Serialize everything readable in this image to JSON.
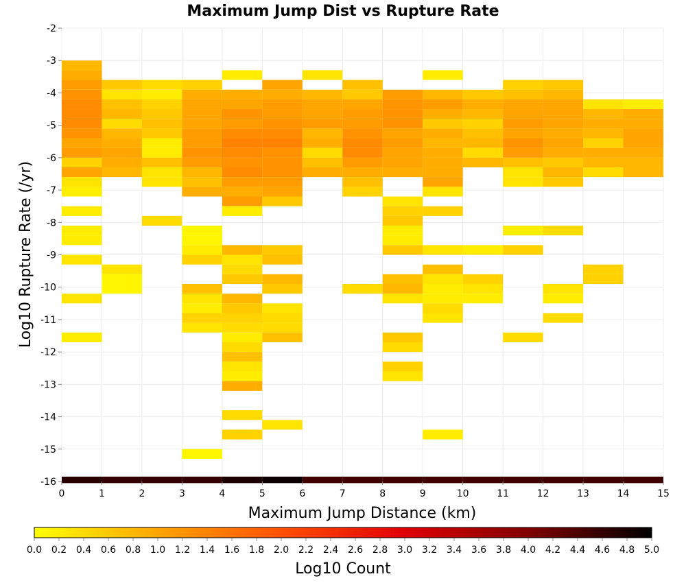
{
  "chart_data": {
    "type": "heatmap",
    "title": "Maximum Jump Dist vs Rupture Rate",
    "xlabel": "Maximum Jump Distance (km)",
    "ylabel": "Log10 Rupture Rate (/yr)",
    "xlim": [
      0,
      15
    ],
    "ylim": [
      -16,
      -2
    ],
    "x_ticks": [
      "0",
      "1",
      "2",
      "3",
      "4",
      "5",
      "6",
      "7",
      "8",
      "9",
      "10",
      "11",
      "12",
      "13",
      "14",
      "15"
    ],
    "y_ticks": [
      "-2",
      "-3",
      "-4",
      "-5",
      "-6",
      "-7",
      "-8",
      "-9",
      "-10",
      "-11",
      "-12",
      "-13",
      "-14",
      "-15",
      "-16"
    ],
    "grid": true,
    "x_bin_width": 1,
    "y_bin_height": 0.3,
    "colorbar": {
      "label": "Log10 Count",
      "min": 0.0,
      "max": 5.0,
      "colors": [
        "#ffff00",
        "#ffa500",
        "#ff5000",
        "#e00000",
        "#800000",
        "#000000"
      ],
      "tick_labels": [
        "0.0",
        "0.2",
        "0.4",
        "0.6",
        "0.8",
        "1.0",
        "1.2",
        "1.4",
        "1.6",
        "1.8",
        "2.0",
        "2.2",
        "2.4",
        "2.6",
        "2.8",
        "3.0",
        "3.2",
        "3.4",
        "3.6",
        "3.8",
        "4.0",
        "4.2",
        "4.4",
        "4.6",
        "4.8",
        "5.0"
      ]
    },
    "total_row": {
      "y": -16,
      "values": [
        4.7,
        4.6,
        4.6,
        4.6,
        4.8,
        4.9,
        4.5,
        4.5,
        4.5,
        4.5,
        4.5,
        4.5,
        4.5,
        4.5,
        4.5
      ]
    },
    "columns": [
      {
        "x": 0,
        "cells": [
          [
            -3.3,
            0.8
          ],
          [
            -3.6,
            0.9
          ],
          [
            -3.9,
            1.1
          ],
          [
            -4.2,
            1.2
          ],
          [
            -4.5,
            1.3
          ],
          [
            -4.8,
            1.3
          ],
          [
            -5.1,
            1.3
          ],
          [
            -5.4,
            1.2
          ],
          [
            -5.7,
            1.0
          ],
          [
            -6.0,
            1.1
          ],
          [
            -6.3,
            0.5
          ],
          [
            -6.6,
            1.0
          ],
          [
            -6.9,
            0.3
          ],
          [
            -7.2,
            0.2
          ],
          [
            -7.8,
            0.2
          ],
          [
            -8.4,
            0.2
          ],
          [
            -8.7,
            0.2
          ],
          [
            -9.3,
            0.3
          ],
          [
            -10.5,
            0.3
          ],
          [
            -11.7,
            0.2
          ]
        ]
      },
      {
        "x": 1,
        "cells": [
          [
            -3.9,
            0.6
          ],
          [
            -4.2,
            0.3
          ],
          [
            -4.5,
            0.7
          ],
          [
            -4.8,
            0.8
          ],
          [
            -5.1,
            0.4
          ],
          [
            -5.4,
            0.8
          ],
          [
            -5.7,
            0.9
          ],
          [
            -6.0,
            1.0
          ],
          [
            -6.3,
            0.9
          ],
          [
            -6.6,
            0.8
          ],
          [
            -9.6,
            0.3
          ],
          [
            -9.9,
            0.1
          ],
          [
            -10.2,
            0.1
          ]
        ]
      },
      {
        "x": 2,
        "cells": [
          [
            -3.9,
            0.4
          ],
          [
            -4.2,
            0.2
          ],
          [
            -4.5,
            0.5
          ],
          [
            -4.8,
            0.6
          ],
          [
            -5.1,
            0.7
          ],
          [
            -5.4,
            0.6
          ],
          [
            -5.7,
            0.2
          ],
          [
            -6.0,
            0.2
          ],
          [
            -6.3,
            0.7
          ],
          [
            -6.6,
            0.3
          ],
          [
            -6.9,
            0.3
          ],
          [
            -8.1,
            0.4
          ]
        ]
      },
      {
        "x": 3,
        "cells": [
          [
            -3.9,
            0.5
          ],
          [
            -4.2,
            0.9
          ],
          [
            -4.5,
            1.0
          ],
          [
            -4.8,
            1.0
          ],
          [
            -5.1,
            1.0
          ],
          [
            -5.4,
            1.1
          ],
          [
            -5.7,
            1.1
          ],
          [
            -6.0,
            1.2
          ],
          [
            -6.3,
            1.1
          ],
          [
            -6.6,
            0.8
          ],
          [
            -6.9,
            0.7
          ],
          [
            -7.2,
            0.9
          ],
          [
            -8.4,
            0.1
          ],
          [
            -8.7,
            0.1
          ],
          [
            -9.0,
            0.2
          ],
          [
            -9.3,
            0.5
          ],
          [
            -10.2,
            0.7
          ],
          [
            -10.5,
            0.3
          ],
          [
            -10.8,
            0.2
          ],
          [
            -11.1,
            0.5
          ],
          [
            -11.4,
            0.3
          ],
          [
            -15.3,
            0.1
          ]
        ]
      },
      {
        "x": 4,
        "cells": [
          [
            -3.6,
            0.2
          ],
          [
            -4.2,
            0.9
          ],
          [
            -4.5,
            1.0
          ],
          [
            -4.8,
            1.2
          ],
          [
            -5.1,
            1.1
          ],
          [
            -5.4,
            1.3
          ],
          [
            -5.7,
            1.4
          ],
          [
            -6.0,
            1.3
          ],
          [
            -6.3,
            1.2
          ],
          [
            -6.6,
            1.3
          ],
          [
            -6.9,
            1.1
          ],
          [
            -7.2,
            0.9
          ],
          [
            -7.5,
            1.1
          ],
          [
            -7.8,
            0.2
          ],
          [
            -9.0,
            0.8
          ],
          [
            -9.3,
            0.3
          ],
          [
            -9.6,
            0.4
          ],
          [
            -9.9,
            0.6
          ],
          [
            -10.5,
            0.8
          ],
          [
            -10.8,
            0.6
          ],
          [
            -11.1,
            0.5
          ],
          [
            -11.4,
            0.4
          ],
          [
            -11.7,
            0.2
          ],
          [
            -12.0,
            0.4
          ],
          [
            -12.3,
            0.7
          ],
          [
            -12.6,
            0.3
          ],
          [
            -12.9,
            0.2
          ],
          [
            -13.2,
            0.9
          ],
          [
            -14.1,
            0.4
          ],
          [
            -14.7,
            0.5
          ]
        ]
      },
      {
        "x": 5,
        "cells": [
          [
            -3.9,
            1.0
          ],
          [
            -4.2,
            0.9
          ],
          [
            -4.5,
            1.1
          ],
          [
            -4.8,
            1.1
          ],
          [
            -5.1,
            1.2
          ],
          [
            -5.4,
            1.3
          ],
          [
            -5.7,
            1.4
          ],
          [
            -6.0,
            1.2
          ],
          [
            -6.3,
            1.2
          ],
          [
            -6.6,
            1.2
          ],
          [
            -6.9,
            1.1
          ],
          [
            -7.2,
            1.0
          ],
          [
            -7.5,
            0.6
          ],
          [
            -9.0,
            0.6
          ],
          [
            -9.3,
            0.7
          ],
          [
            -9.9,
            0.8
          ],
          [
            -10.2,
            0.6
          ],
          [
            -10.8,
            0.3
          ],
          [
            -11.1,
            0.4
          ],
          [
            -11.4,
            0.4
          ],
          [
            -11.7,
            0.7
          ],
          [
            -14.4,
            0.3
          ]
        ]
      },
      {
        "x": 6,
        "cells": [
          [
            -3.6,
            0.3
          ],
          [
            -4.2,
            0.8
          ],
          [
            -4.5,
            1.0
          ],
          [
            -4.8,
            1.0
          ],
          [
            -5.1,
            1.1
          ],
          [
            -5.4,
            0.8
          ],
          [
            -5.7,
            0.9
          ],
          [
            -6.0,
            0.4
          ],
          [
            -6.3,
            0.7
          ],
          [
            -6.6,
            0.9
          ]
        ]
      },
      {
        "x": 7,
        "cells": [
          [
            -3.9,
            0.7
          ],
          [
            -4.2,
            0.6
          ],
          [
            -4.5,
            1.0
          ],
          [
            -4.8,
            1.1
          ],
          [
            -5.1,
            1.1
          ],
          [
            -5.4,
            1.2
          ],
          [
            -5.7,
            1.3
          ],
          [
            -6.0,
            1.3
          ],
          [
            -6.3,
            1.1
          ],
          [
            -6.6,
            0.9
          ],
          [
            -6.9,
            0.7
          ],
          [
            -7.2,
            0.5
          ],
          [
            -10.2,
            0.4
          ]
        ]
      },
      {
        "x": 8,
        "cells": [
          [
            -4.2,
            1.1
          ],
          [
            -4.5,
            1.2
          ],
          [
            -4.8,
            1.2
          ],
          [
            -5.1,
            1.2
          ],
          [
            -5.4,
            1.0
          ],
          [
            -5.7,
            1.1
          ],
          [
            -6.0,
            1.0
          ],
          [
            -6.3,
            1.0
          ],
          [
            -6.6,
            0.9
          ],
          [
            -7.5,
            0.3
          ],
          [
            -7.8,
            0.5
          ],
          [
            -8.1,
            0.6
          ],
          [
            -8.4,
            0.2
          ],
          [
            -8.7,
            0.2
          ],
          [
            -9.0,
            0.6
          ],
          [
            -9.9,
            0.7
          ],
          [
            -10.2,
            0.8
          ],
          [
            -10.5,
            0.3
          ],
          [
            -11.7,
            0.6
          ],
          [
            -12.0,
            0.4
          ],
          [
            -12.6,
            0.5
          ],
          [
            -12.9,
            0.3
          ]
        ]
      },
      {
        "x": 9,
        "cells": [
          [
            -3.6,
            0.2
          ],
          [
            -4.2,
            0.8
          ],
          [
            -4.5,
            1.1
          ],
          [
            -4.8,
            0.9
          ],
          [
            -5.1,
            0.6
          ],
          [
            -5.4,
            0.9
          ],
          [
            -5.7,
            0.8
          ],
          [
            -6.0,
            0.9
          ],
          [
            -6.3,
            0.9
          ],
          [
            -6.6,
            0.9
          ],
          [
            -6.9,
            1.0
          ],
          [
            -7.2,
            0.3
          ],
          [
            -7.8,
            0.5
          ],
          [
            -9.0,
            0.3
          ],
          [
            -9.6,
            0.7
          ],
          [
            -9.9,
            0.3
          ],
          [
            -10.2,
            0.2
          ],
          [
            -10.5,
            0.2
          ],
          [
            -10.8,
            0.4
          ],
          [
            -11.1,
            0.3
          ],
          [
            -14.7,
            0.2
          ]
        ]
      },
      {
        "x": 10,
        "cells": [
          [
            -4.2,
            0.6
          ],
          [
            -4.5,
            0.9
          ],
          [
            -4.8,
            0.8
          ],
          [
            -5.1,
            0.5
          ],
          [
            -5.4,
            0.7
          ],
          [
            -5.7,
            0.8
          ],
          [
            -6.0,
            0.4
          ],
          [
            -6.3,
            0.8
          ],
          [
            -9.0,
            0.2
          ],
          [
            -9.9,
            0.5
          ],
          [
            -10.2,
            0.3
          ],
          [
            -10.5,
            0.2
          ]
        ]
      },
      {
        "x": 11,
        "cells": [
          [
            -3.9,
            0.5
          ],
          [
            -4.2,
            0.7
          ],
          [
            -4.5,
            1.0
          ],
          [
            -4.8,
            1.0
          ],
          [
            -5.1,
            1.1
          ],
          [
            -5.4,
            1.0
          ],
          [
            -5.7,
            1.2
          ],
          [
            -6.0,
            1.1
          ],
          [
            -6.3,
            0.7
          ],
          [
            -6.6,
            0.3
          ],
          [
            -6.9,
            0.3
          ],
          [
            -8.4,
            0.2
          ],
          [
            -9.0,
            0.5
          ],
          [
            -11.7,
            0.4
          ]
        ]
      },
      {
        "x": 12,
        "cells": [
          [
            -3.9,
            0.6
          ],
          [
            -4.2,
            0.8
          ],
          [
            -4.5,
            1.0
          ],
          [
            -4.8,
            1.0
          ],
          [
            -5.1,
            1.0
          ],
          [
            -5.4,
            0.9
          ],
          [
            -5.7,
            1.0
          ],
          [
            -6.0,
            0.9
          ],
          [
            -6.3,
            0.6
          ],
          [
            -6.6,
            0.8
          ],
          [
            -6.9,
            0.6
          ],
          [
            -8.4,
            0.4
          ],
          [
            -10.2,
            0.3
          ],
          [
            -10.5,
            0.2
          ],
          [
            -11.1,
            0.4
          ]
        ]
      },
      {
        "x": 13,
        "cells": [
          [
            -4.5,
            0.3
          ],
          [
            -4.8,
            0.8
          ],
          [
            -5.1,
            0.9
          ],
          [
            -5.4,
            0.8
          ],
          [
            -5.7,
            0.5
          ],
          [
            -6.0,
            0.9
          ],
          [
            -6.3,
            0.8
          ],
          [
            -6.6,
            0.4
          ],
          [
            -9.6,
            0.5
          ],
          [
            -9.9,
            0.5
          ]
        ]
      },
      {
        "x": 14,
        "cells": [
          [
            -4.5,
            0.2
          ],
          [
            -4.8,
            0.9
          ],
          [
            -5.1,
            0.9
          ],
          [
            -5.4,
            1.0
          ],
          [
            -5.7,
            1.0
          ],
          [
            -6.0,
            0.9
          ],
          [
            -6.3,
            0.8
          ],
          [
            -6.6,
            0.8
          ]
        ]
      }
    ]
  }
}
